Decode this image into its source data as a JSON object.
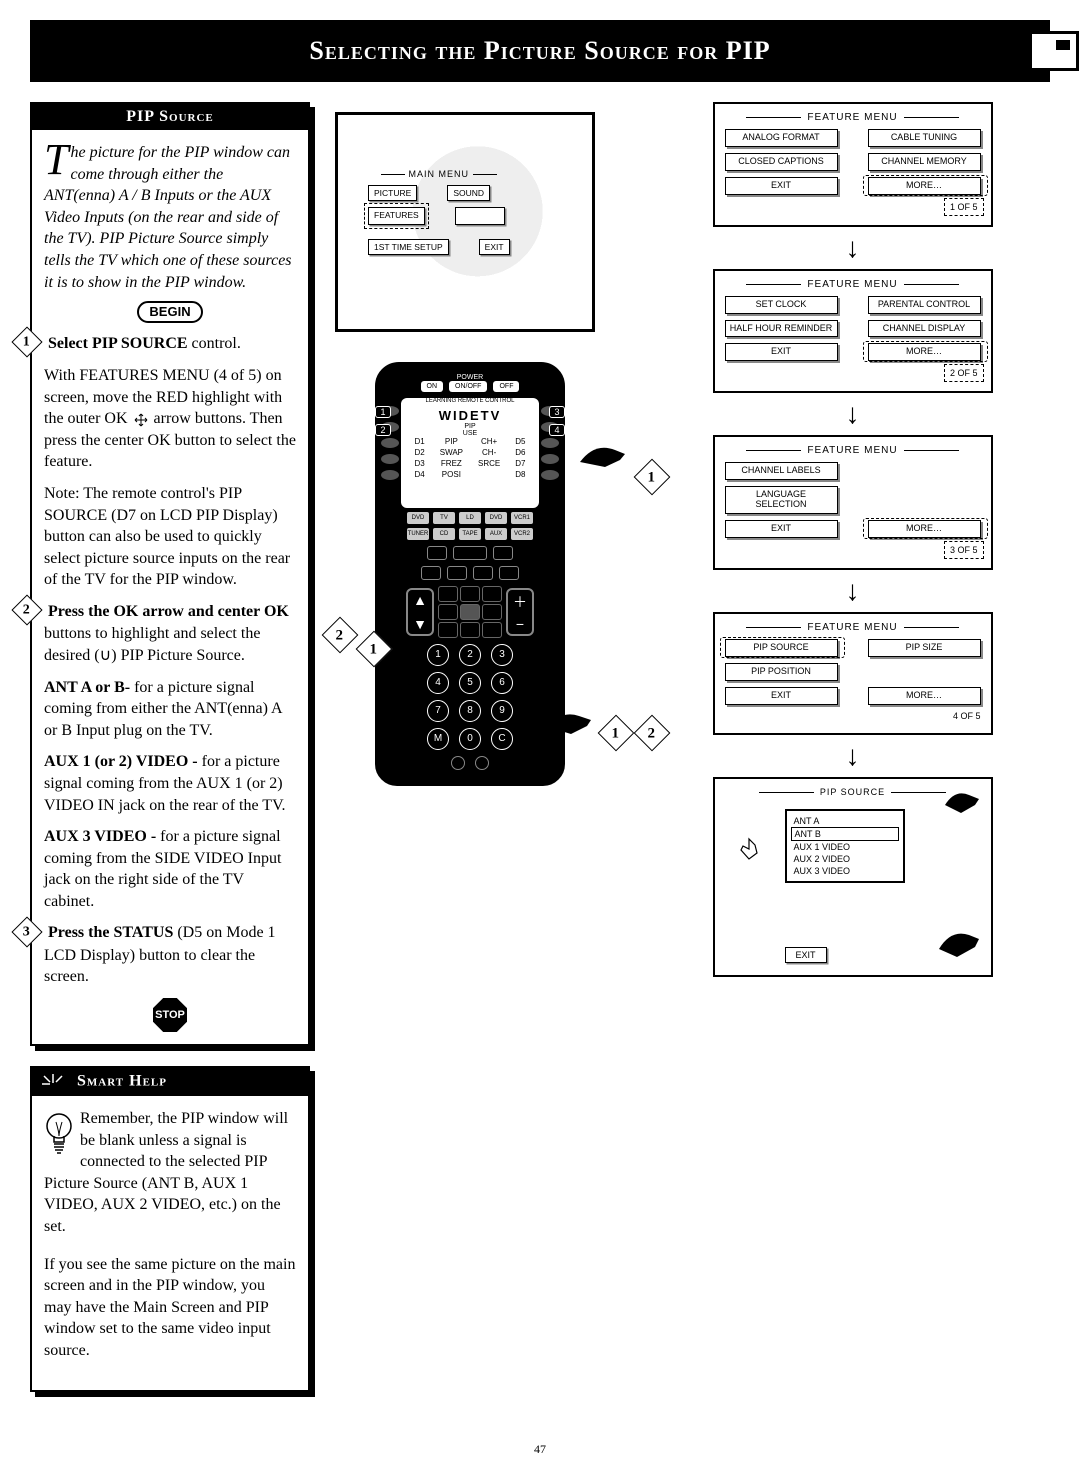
{
  "page": {
    "title": "Selecting the Picture Source for PIP",
    "page_number": "47"
  },
  "left": {
    "header": "PIP Source",
    "intro_dropcap": "T",
    "intro_text": "he picture for the PIP window can come through either the ANT(enna) A / B Inputs or the AUX Video Inputs (on the rear and side of the TV). PIP Picture Source simply tells the TV which one of these sources it is to show in the PIP window.",
    "begin_label": "BEGIN",
    "step1_num": "1",
    "step1_lead": "Select PIP SOURCE",
    "step1_tail": " control.",
    "step1_body1": "With FEATURES MENU (4 of 5) on screen, move the RED highlight with the outer OK",
    "step1_body2": "arrow buttons. Then press the center OK button to select the feature.",
    "step1_note": "Note: The remote control's PIP SOURCE (D7 on LCD PIP Display) button can also be used to quickly select picture source inputs on the rear of the TV for the PIP window.",
    "step2_num": "2",
    "step2_lead": "Press the OK arrow and center OK",
    "step2_body": " buttons to highlight and select the desired (∪) PIP Picture Source.",
    "antab_lead": "ANT A or B-",
    "antab_body": " for a picture signal coming from either the ANT(enna) A or B Input plug on the TV.",
    "aux12_lead": "AUX 1 (or 2) VIDEO -",
    "aux12_body": " for a picture signal coming from the AUX 1 (or 2) VIDEO IN jack on the rear of the TV.",
    "aux3_lead": "AUX 3 VIDEO -",
    "aux3_body": " for a picture signal coming from the SIDE VIDEO Input jack on the right side of the TV cabinet.",
    "step3_num": "3",
    "step3_lead": "Press the STATUS",
    "step3_body": " (D5 on Mode 1 LCD Display) button to clear the screen.",
    "stop_label": "STOP"
  },
  "smart_help": {
    "header": "Smart Help",
    "p1": "Remember, the PIP window will be blank unless a signal is connected to the selected PIP Picture Source (ANT B, AUX 1 VIDEO, AUX 2 VIDEO, etc.) on the set.",
    "p2": "If you see the same picture on the main screen and in the PIP window, you may have the Main Screen and PIP window set to the same video input source."
  },
  "tv_menu": {
    "header": "MAIN MENU",
    "picture": "PICTURE",
    "sound": "SOUND",
    "features": "FEATURES",
    "first_time": "1ST TIME SETUP",
    "exit": "EXIT"
  },
  "menus": {
    "fm_label": "FEATURE MENU",
    "m1": {
      "a1": "ANALOG FORMAT",
      "a2": "CABLE TUNING",
      "b1": "CLOSED CAPTIONS",
      "b2": "CHANNEL MEMORY",
      "c1": "EXIT",
      "c2": "MORE…",
      "page": "1 OF 5"
    },
    "m2": {
      "a1": "SET CLOCK",
      "a2": "PARENTAL CONTROL",
      "b1": "HALF HOUR REMINDER",
      "b2": "CHANNEL DISPLAY",
      "c1": "EXIT",
      "c2": "MORE…",
      "page": "2 OF 5"
    },
    "m3": {
      "a1": "CHANNEL LABELS",
      "b1": "LANGUAGE SELECTION",
      "c1": "EXIT",
      "c2": "MORE…",
      "page": "3 OF 5"
    },
    "m4": {
      "a1": "PIP SOURCE",
      "a2": "PIP SIZE",
      "b1": "PIP POSITION",
      "c1": "EXIT",
      "c2": "MORE…",
      "page": "4 OF 5"
    }
  },
  "pip_source_menu": {
    "header": "PIP SOURCE",
    "items": [
      "ANT A",
      "ANT B",
      "AUX 1 VIDEO",
      "AUX 2 VIDEO",
      "AUX 3 VIDEO"
    ],
    "selected_index": 1,
    "exit": "EXIT"
  },
  "remote": {
    "power": "POWER",
    "on": "ON",
    "onoff": "ON/OFF",
    "off": "OFF",
    "brand": "WIDETV",
    "pip_use": "PIP\nUSE",
    "lcd_rows": [
      [
        "D1",
        "PIP",
        "CH+",
        "D5"
      ],
      [
        "D2",
        "SWAP",
        "CH-",
        "D6"
      ],
      [
        "D3",
        "FREZ",
        "SRCE",
        "D7"
      ],
      [
        "D4",
        "POSI",
        "",
        "D8"
      ]
    ],
    "devices1": [
      "DVD PLYR",
      "TV",
      "LD",
      "DVD",
      "VCR1"
    ],
    "devices2": [
      "TUNER",
      "CD",
      "TAPE",
      "AUX",
      "VCR2"
    ],
    "keypad": [
      "1",
      "2",
      "3",
      "4",
      "5",
      "6",
      "7",
      "8",
      "9",
      "M",
      "0",
      "C"
    ]
  },
  "callouts": {
    "c1": "1",
    "c2": "2"
  },
  "colors": {
    "black": "#000000",
    "white": "#ffffff",
    "shadow": "#888888"
  }
}
